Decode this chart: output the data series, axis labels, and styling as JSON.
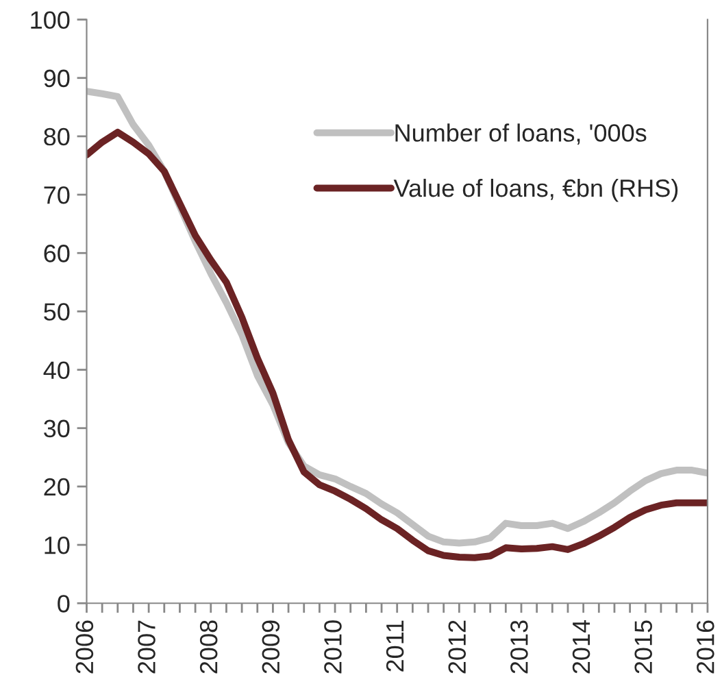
{
  "chart_data": {
    "type": "line",
    "x": [
      2006,
      2006.25,
      2006.5,
      2006.75,
      2007,
      2007.25,
      2007.5,
      2007.75,
      2008,
      2008.25,
      2008.5,
      2008.75,
      2009,
      2009.25,
      2009.5,
      2009.75,
      2010,
      2010.25,
      2010.5,
      2010.75,
      2011,
      2011.25,
      2011.5,
      2011.75,
      2012,
      2012.25,
      2012.5,
      2012.75,
      2013,
      2013.25,
      2013.5,
      2013.75,
      2014,
      2014.25,
      2014.5,
      2014.75,
      2015,
      2015.25,
      2015.5,
      2015.75,
      2016
    ],
    "series": [
      {
        "name": "Number of loans, '000s",
        "color": "#c0c0c0",
        "values": [
          87.7,
          87.3,
          86.8,
          82,
          78.5,
          74,
          68,
          62,
          56.5,
          51.5,
          46,
          39,
          34,
          27.5,
          23.5,
          22,
          21.3,
          20,
          18.8,
          17,
          15.5,
          13.5,
          11.5,
          10.5,
          10.3,
          10.5,
          11.2,
          13.7,
          13.3,
          13.3,
          13.7,
          12.8,
          14,
          15.5,
          17.2,
          19.2,
          21,
          22.2,
          22.8,
          22.8,
          22.3
        ]
      },
      {
        "name": "Value of loans, €bn (RHS)",
        "color": "#6b2324",
        "values": [
          76.8,
          79,
          80.7,
          79,
          77,
          74,
          68.5,
          63,
          58.8,
          55,
          49,
          42,
          36,
          28,
          22.5,
          20.3,
          19.2,
          17.8,
          16.2,
          14.3,
          12.8,
          10.8,
          9,
          8.2,
          7.9,
          7.8,
          8.1,
          9.5,
          9.3,
          9.4,
          9.7,
          9.2,
          10.2,
          11.5,
          13,
          14.7,
          16,
          16.8,
          17.2,
          17.2,
          17.2
        ]
      }
    ],
    "xlim": [
      2006,
      2016
    ],
    "xticks": [
      2006,
      {
        "value": 2006.25,
        "label": null
      },
      {
        "value": 2006.5,
        "label": null
      },
      {
        "value": 2006.75,
        "label": null
      },
      2007,
      {
        "value": 2007.25,
        "label": null
      },
      {
        "value": 2007.5,
        "label": null
      },
      {
        "value": 2007.75,
        "label": null
      },
      2008,
      {
        "value": 2008.25,
        "label": null
      },
      {
        "value": 2008.5,
        "label": null
      },
      {
        "value": 2008.75,
        "label": null
      },
      2009,
      {
        "value": 2009.25,
        "label": null
      },
      {
        "value": 2009.5,
        "label": null
      },
      {
        "value": 2009.75,
        "label": null
      },
      2010,
      {
        "value": 2010.25,
        "label": null
      },
      {
        "value": 2010.5,
        "label": null
      },
      {
        "value": 2010.75,
        "label": null
      },
      2011,
      {
        "value": 2011.25,
        "label": null
      },
      {
        "value": 2011.5,
        "label": null
      },
      {
        "value": 2011.75,
        "label": null
      },
      2012,
      {
        "value": 2012.25,
        "label": null
      },
      {
        "value": 2012.5,
        "label": null
      },
      {
        "value": 2012.75,
        "label": null
      },
      2013,
      {
        "value": 2013.25,
        "label": null
      },
      {
        "value": 2013.5,
        "label": null
      },
      {
        "value": 2013.75,
        "label": null
      },
      2014,
      {
        "value": 2014.25,
        "label": null
      },
      {
        "value": 2014.5,
        "label": null
      },
      {
        "value": 2014.75,
        "label": null
      },
      2015,
      {
        "value": 2015.25,
        "label": null
      },
      {
        "value": 2015.5,
        "label": null
      },
      {
        "value": 2015.75,
        "label": null
      },
      2016
    ],
    "ylim": [
      0,
      100
    ],
    "yticks": [
      0,
      10,
      20,
      30,
      40,
      50,
      60,
      70,
      80,
      90,
      100
    ],
    "grid": false,
    "legend": "top right",
    "line_style": "solid",
    "marker": "none"
  }
}
